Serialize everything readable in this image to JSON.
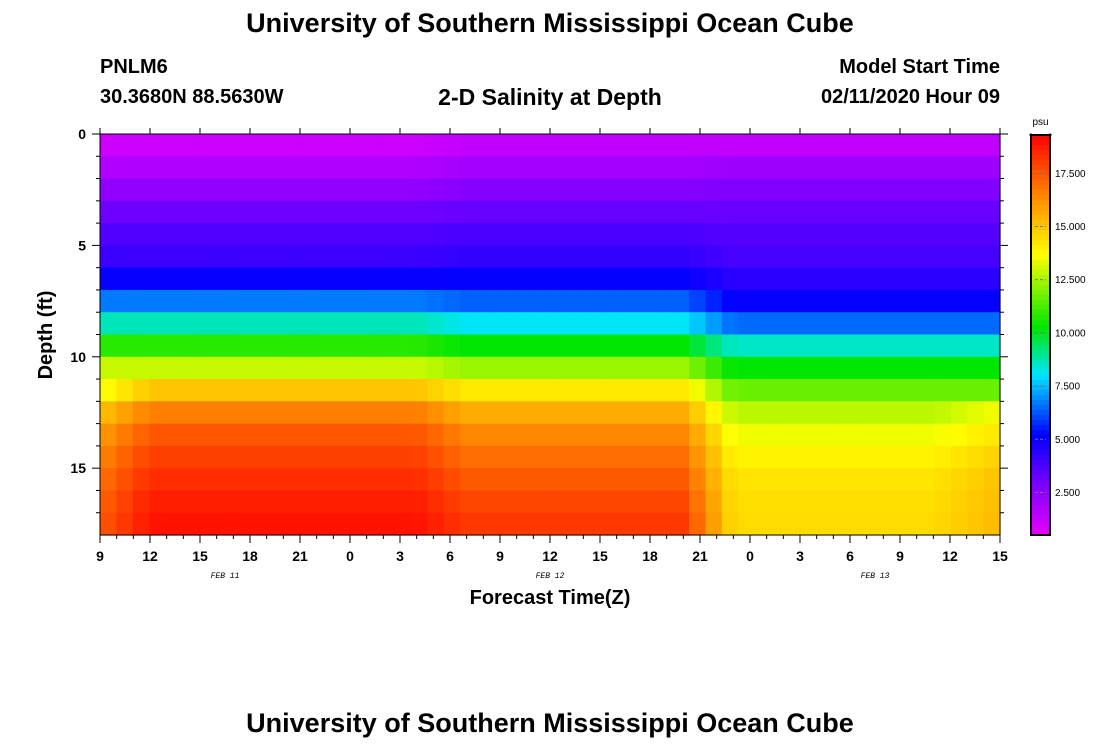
{
  "header": {
    "title_top": "University of Southern Mississippi Ocean Cube",
    "station_id": "PNLM6",
    "station_coords": "30.3680N 88.5630W",
    "plot_title": "2-D Salinity at Depth",
    "model_start_label": "Model Start Time",
    "model_start_value": "02/11/2020 Hour 09",
    "title_bottom": "University of Southern Mississippi Ocean Cube"
  },
  "chart_data": {
    "type": "heatmap",
    "title": "2-D Salinity at Depth",
    "xlabel": "Forecast Time(Z)",
    "ylabel": "Depth (ft)",
    "x_hours": [
      0,
      54
    ],
    "ylim": [
      0,
      18
    ],
    "y_ticks": [
      "0",
      "5",
      "10",
      "15"
    ],
    "y_tick_values": [
      0,
      5,
      10,
      15
    ],
    "x_ticks": [
      "9",
      "12",
      "15",
      "18",
      "21",
      "0",
      "3",
      "6",
      "9",
      "12",
      "15",
      "18",
      "21",
      "0",
      "3",
      "6",
      "9",
      "12",
      "15"
    ],
    "date_labels": [
      {
        "text": "FEB  11",
        "hour": 7.5
      },
      {
        "text": "FEB  12",
        "hour": 27
      },
      {
        "text": "FEB  13",
        "hour": 46.5
      }
    ],
    "colorbar": {
      "unit": "psu",
      "vmin": 0.5,
      "vmax": 19.3,
      "ticks": [
        "2.500",
        "5.000",
        "7.500",
        "10.000",
        "12.500",
        "15.000",
        "17.500"
      ],
      "tick_values": [
        2.5,
        5.0,
        7.5,
        10.0,
        12.5,
        15.0,
        17.5
      ]
    },
    "depth_bins": 18,
    "time_steps": 55,
    "salinity_profile_psu": {
      "depths_ft": [
        0,
        2,
        4,
        6,
        8,
        9,
        10,
        11,
        12,
        13,
        15,
        17,
        18
      ],
      "period_1_feb11": [
        0.8,
        2.0,
        3.5,
        4.3,
        7.5,
        9.8,
        11.8,
        14.0,
        16.0,
        17.2,
        18.2,
        18.8,
        19.0
      ],
      "period_2_feb12": [
        1.0,
        2.3,
        3.6,
        4.5,
        7.0,
        9.2,
        11.3,
        13.3,
        15.0,
        16.2,
        17.2,
        18.0,
        18.2
      ],
      "period_3_feb13": [
        1.0,
        2.5,
        3.5,
        4.0,
        5.5,
        7.5,
        9.5,
        11.0,
        12.3,
        13.2,
        14.2,
        14.5,
        14.5
      ]
    },
    "grid": false
  }
}
